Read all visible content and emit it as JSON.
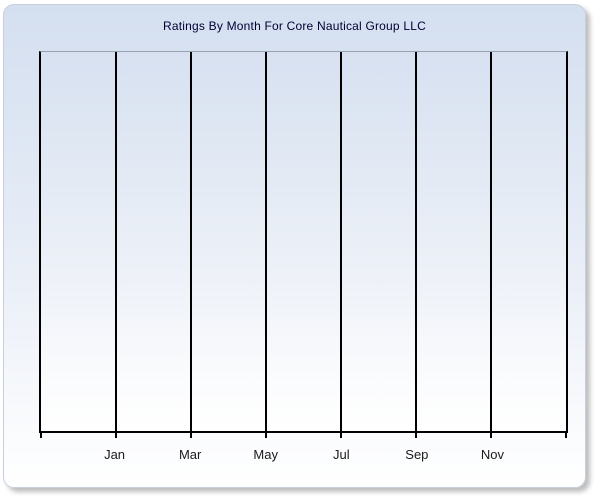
{
  "chart_data": {
    "type": "line",
    "title": "Ratings By Month For Core Nautical Group LLC",
    "xlabel": "",
    "ylabel": "",
    "x_tick_labels": [
      "Jan",
      "Mar",
      "May",
      "Jul",
      "Sep",
      "Nov"
    ],
    "x_axis_span_months": 14,
    "series": [],
    "legend": "none",
    "grid": "vertical-only",
    "colors": {
      "title_text": "#000033",
      "axis_label_text": "#1a1a1a",
      "gridline": "#000000",
      "plot_top_border": "#98a1ae",
      "panel_gradient_top": "#d4dff0",
      "panel_gradient_bottom": "#ffffff",
      "plot_gradient_top": "#d7e1f1",
      "plot_gradient_bottom": "#ffffff"
    }
  }
}
